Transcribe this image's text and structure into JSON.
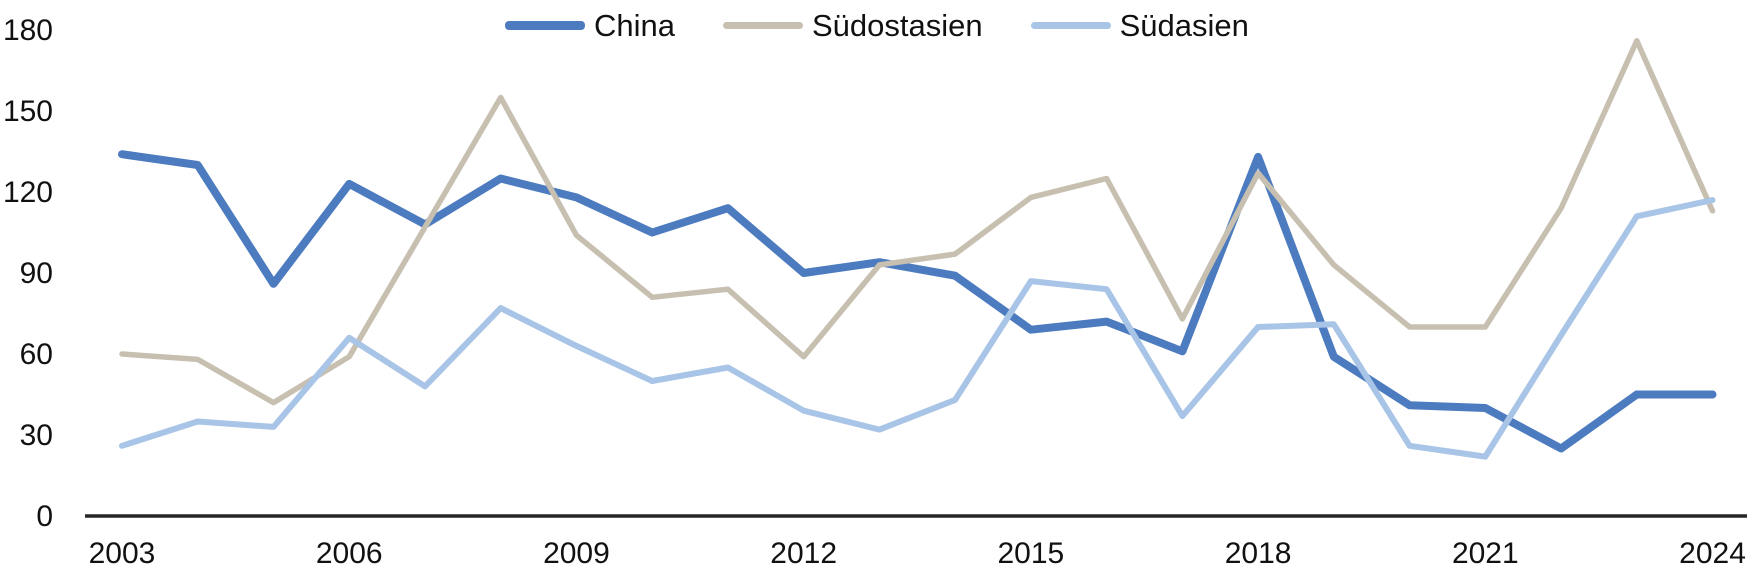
{
  "chart_data": {
    "type": "line",
    "x": [
      2003,
      2004,
      2005,
      2006,
      2007,
      2008,
      2009,
      2010,
      2011,
      2012,
      2013,
      2014,
      2015,
      2016,
      2017,
      2018,
      2019,
      2020,
      2021,
      2022,
      2023,
      2024
    ],
    "series": [
      {
        "name": "China",
        "color": "#4C7BBF",
        "stroke_width": 8,
        "values": [
          134,
          130,
          86,
          123,
          108,
          125,
          118,
          105,
          114,
          90,
          94,
          89,
          69,
          72,
          61,
          133,
          59,
          41,
          40,
          25,
          45,
          45
        ]
      },
      {
        "name": "Südostasien",
        "color": "#C7C0B1",
        "stroke_width": 5.5,
        "values": [
          60,
          58,
          42,
          59,
          107,
          155,
          104,
          81,
          84,
          59,
          93,
          97,
          118,
          125,
          73,
          127,
          93,
          70,
          70,
          114,
          176,
          113
        ]
      },
      {
        "name": "Südasien",
        "color": "#A8C4E6",
        "stroke_width": 6,
        "values": [
          26,
          35,
          33,
          66,
          48,
          77,
          63,
          50,
          55,
          39,
          32,
          43,
          87,
          84,
          37,
          70,
          71,
          26,
          22,
          67,
          111,
          117
        ]
      }
    ],
    "title": "",
    "xlabel": "",
    "ylabel": "",
    "ylim": [
      0,
      180
    ],
    "yticks": [
      0,
      30,
      60,
      90,
      120,
      150,
      180
    ],
    "ytick_labels": [
      "0",
      "30",
      "60",
      "90",
      "120",
      "150",
      "180"
    ],
    "xticks": [
      2003,
      2006,
      2009,
      2012,
      2015,
      2018,
      2021,
      2024
    ],
    "xtick_labels": [
      "2003",
      "2006",
      "2009",
      "2012",
      "2015",
      "2018",
      "2021",
      "2024"
    ],
    "grid": false,
    "legend_position": "top-center",
    "axis_color": "#262626",
    "text_color": "#111111"
  },
  "legend": {
    "items": [
      {
        "label": "China"
      },
      {
        "label": "Südostasien"
      },
      {
        "label": "Südasien"
      }
    ]
  }
}
